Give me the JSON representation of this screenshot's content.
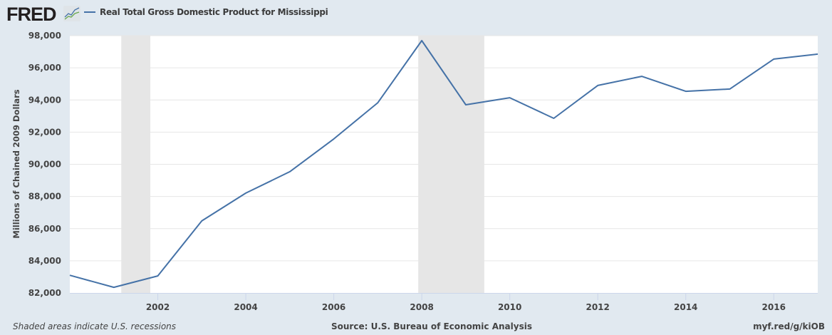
{
  "header": {
    "logo": "FRED",
    "logo_icon": "line-chart-icon",
    "legend_label": "Real Total Gross Domestic Product for Mississippi",
    "series_color": "#4572a7"
  },
  "footer": {
    "recession_note": "Shaded areas indicate U.S. recessions",
    "source": "Source: U.S. Bureau of Economic Analysis",
    "short_url": "myf.red/g/kiOB"
  },
  "colors": {
    "background": "#e1e9f0",
    "plot_background": "#ffffff",
    "gridline": "#e6e6e6",
    "recession_shade": "#e6e6e6",
    "line": "#4572a7"
  },
  "chart_data": {
    "type": "line",
    "title": "Real Total Gross Domestic Product for Mississippi",
    "xlabel": "",
    "ylabel": "Millions of Chained 2009 Dollars",
    "x": [
      2000,
      2001,
      2002,
      2003,
      2004,
      2005,
      2006,
      2007,
      2008,
      2009,
      2010,
      2011,
      2012,
      2013,
      2014,
      2015,
      2016,
      2017
    ],
    "series": [
      {
        "name": "Real Total Gross Domestic Product for Mississippi",
        "values": [
          83100,
          82350,
          83060,
          86480,
          88210,
          89540,
          91580,
          93830,
          97690,
          93700,
          94140,
          92860,
          94900,
          95470,
          94540,
          94680,
          96540,
          96850
        ]
      }
    ],
    "xlim": [
      2000,
      2017
    ],
    "ylim": [
      82000,
      98000
    ],
    "x_ticks": [
      "2002",
      "2004",
      "2006",
      "2008",
      "2010",
      "2012",
      "2014",
      "2016"
    ],
    "y_ticks": [
      "82,000",
      "84,000",
      "86,000",
      "88,000",
      "90,000",
      "92,000",
      "94,000",
      "96,000",
      "98,000"
    ],
    "recessions": [
      {
        "start": 2001.17,
        "end": 2001.83
      },
      {
        "start": 2007.92,
        "end": 2009.42
      }
    ],
    "grid": true,
    "legend_position": "top-left"
  }
}
